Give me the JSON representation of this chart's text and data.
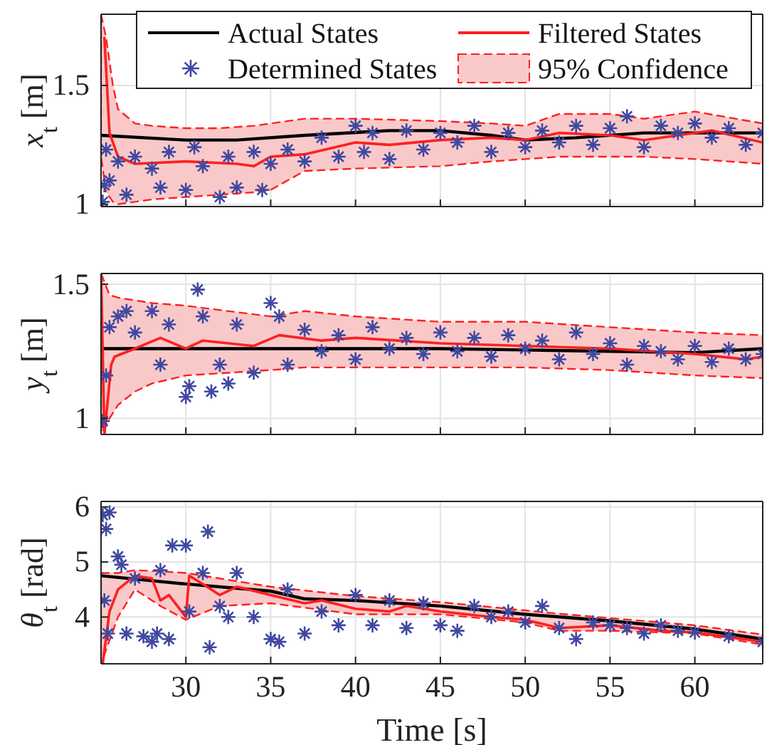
{
  "chart_data": [
    {
      "type": "line",
      "ylabel": "x$_{t}$ [m]",
      "xlim": [
        25,
        64
      ],
      "ylim": [
        0.99,
        1.8
      ],
      "xticks": [
        25,
        30,
        35,
        40,
        45,
        50,
        55,
        60
      ],
      "yticks": [
        1,
        1.5
      ],
      "tick_labels": "y",
      "grid": true,
      "legend": "top",
      "series": [
        {
          "name": "Actual States",
          "type": "line",
          "color": "#000000",
          "x": [
            25,
            30,
            33,
            37,
            42,
            45,
            48,
            50,
            53,
            57,
            60,
            64
          ],
          "values": [
            1.29,
            1.27,
            1.27,
            1.29,
            1.31,
            1.31,
            1.29,
            1.27,
            1.28,
            1.3,
            1.3,
            1.3
          ]
        },
        {
          "name": "Filtered States",
          "type": "line",
          "color": "#ff2020",
          "x": [
            25.2,
            25.5,
            26,
            27,
            30,
            33,
            34,
            35,
            37,
            40,
            42,
            45,
            48,
            50,
            52,
            55,
            57,
            59,
            61,
            64
          ],
          "values": [
            1.7,
            1.3,
            1.2,
            1.17,
            1.18,
            1.17,
            1.16,
            1.2,
            1.21,
            1.26,
            1.25,
            1.27,
            1.28,
            1.27,
            1.3,
            1.29,
            1.27,
            1.29,
            1.31,
            1.26
          ]
        },
        {
          "name": "Determined States",
          "type": "scatter",
          "marker": "cross",
          "color": "#3f48a0",
          "x": [
            25.1,
            25.2,
            25.3,
            25.5,
            26,
            26.5,
            27,
            28,
            28.5,
            29,
            30,
            30.5,
            31,
            32,
            32.5,
            33,
            34,
            34.5,
            35,
            36,
            37,
            38,
            39,
            40,
            40.5,
            41,
            42,
            43,
            44,
            45,
            46,
            47,
            48,
            49,
            50,
            51,
            52,
            53,
            54,
            55,
            56,
            57,
            58,
            59,
            60,
            61,
            62,
            63,
            64
          ],
          "values": [
            1.01,
            1.08,
            1.23,
            1.1,
            1.18,
            1.04,
            1.2,
            1.15,
            1.07,
            1.22,
            1.06,
            1.24,
            1.16,
            1.03,
            1.2,
            1.07,
            1.22,
            1.06,
            1.17,
            1.23,
            1.18,
            1.28,
            1.2,
            1.33,
            1.22,
            1.3,
            1.19,
            1.31,
            1.23,
            1.3,
            1.26,
            1.33,
            1.22,
            1.3,
            1.24,
            1.31,
            1.26,
            1.33,
            1.25,
            1.32,
            1.37,
            1.24,
            1.33,
            1.3,
            1.34,
            1.28,
            1.32,
            1.25,
            1.3
          ]
        },
        {
          "name": "95% Confidence",
          "type": "area",
          "color": "#f9c9c9",
          "line_style": "dashed",
          "x": [
            25,
            25.3,
            25.7,
            26,
            27,
            28,
            30,
            32,
            34,
            35,
            37,
            40,
            45,
            48,
            50,
            52,
            55,
            57,
            60,
            64
          ],
          "values": [
            null,
            null,
            null,
            null,
            null,
            null,
            null,
            null,
            null,
            null,
            null,
            null,
            null,
            null,
            null,
            null,
            null,
            null,
            null,
            null
          ],
          "lower": [
            1.2,
            1.05,
            1.01,
            1.0,
            1.01,
            1.02,
            1.03,
            1.04,
            1.05,
            1.06,
            1.14,
            1.15,
            1.16,
            1.18,
            1.19,
            1.2,
            1.2,
            1.2,
            1.19,
            1.17
          ],
          "upper": [
            1.8,
            1.7,
            1.5,
            1.4,
            1.34,
            1.33,
            1.32,
            1.32,
            1.33,
            1.34,
            1.36,
            1.36,
            1.35,
            1.34,
            1.33,
            1.38,
            1.38,
            1.36,
            1.39,
            1.34
          ]
        }
      ]
    },
    {
      "type": "line",
      "ylabel": "y$_{t}$ [m]",
      "xlim": [
        25,
        64
      ],
      "ylim": [
        0.94,
        1.54
      ],
      "xticks": [
        25,
        30,
        35,
        40,
        45,
        50,
        55,
        60
      ],
      "yticks": [
        1,
        1.5
      ],
      "tick_labels": "y",
      "grid": true,
      "series": [
        {
          "type": "line",
          "color": "#000000",
          "x": [
            25,
            30,
            35,
            40,
            45,
            50,
            55,
            60,
            64
          ],
          "values": [
            1.26,
            1.26,
            1.26,
            1.26,
            1.26,
            1.255,
            1.25,
            1.245,
            1.26
          ]
        },
        {
          "type": "line",
          "color": "#ff2020",
          "x": [
            25,
            25.2,
            25.6,
            25.8,
            27,
            28.5,
            30,
            31,
            34,
            35.5,
            38,
            40,
            45,
            50,
            55,
            60,
            63,
            64
          ],
          "values": [
            1.54,
            0.94,
            1.2,
            1.23,
            1.26,
            1.3,
            1.26,
            1.29,
            1.27,
            1.31,
            1.29,
            1.3,
            1.28,
            1.27,
            1.26,
            1.24,
            1.22,
            1.23
          ]
        },
        {
          "type": "scatter",
          "marker": "cross",
          "color": "#3f48a0",
          "x": [
            25.1,
            25.3,
            25.5,
            26,
            26.5,
            27,
            28,
            28.5,
            29,
            30,
            30.2,
            30.7,
            31,
            31.5,
            32,
            32.5,
            33,
            34,
            35,
            35.5,
            36,
            37,
            38,
            39,
            40,
            41,
            42,
            43,
            44,
            45,
            46,
            47,
            48,
            49,
            50,
            51,
            52,
            53,
            54,
            55,
            56,
            57,
            58,
            59,
            60,
            61,
            62,
            63,
            64
          ],
          "values": [
            0.99,
            1.16,
            1.34,
            1.38,
            1.4,
            1.32,
            1.4,
            1.2,
            1.35,
            1.08,
            1.12,
            1.48,
            1.38,
            1.1,
            1.2,
            1.13,
            1.35,
            1.17,
            1.43,
            1.38,
            1.2,
            1.33,
            1.25,
            1.31,
            1.22,
            1.34,
            1.26,
            1.3,
            1.24,
            1.32,
            1.25,
            1.3,
            1.23,
            1.31,
            1.26,
            1.29,
            1.22,
            1.32,
            1.24,
            1.28,
            1.2,
            1.27,
            1.25,
            1.22,
            1.27,
            1.21,
            1.26,
            1.22,
            1.24
          ]
        },
        {
          "type": "area",
          "color": "#f9c9c9",
          "line_style": "dashed",
          "x": [
            25,
            25.5,
            26,
            27,
            28,
            30,
            35,
            37,
            40,
            45,
            50,
            55,
            60,
            64
          ],
          "values": [
            null,
            null,
            null,
            null,
            null,
            null,
            null,
            null,
            null,
            null,
            null,
            null,
            null,
            null
          ],
          "lower": [
            0.94,
            1.0,
            1.05,
            1.1,
            1.13,
            1.16,
            1.18,
            1.19,
            1.19,
            1.19,
            1.19,
            1.18,
            1.16,
            1.15
          ],
          "upper": [
            1.54,
            1.46,
            1.45,
            1.44,
            1.43,
            1.42,
            1.38,
            1.4,
            1.38,
            1.36,
            1.36,
            1.34,
            1.32,
            1.31
          ]
        }
      ]
    },
    {
      "type": "line",
      "xlabel": "Time [s]",
      "ylabel": "θ$_{t}$ [rad]",
      "xlim": [
        25,
        64
      ],
      "ylim": [
        3.15,
        6.1
      ],
      "xticks": [
        {
          "value": 25,
          "label": null
        },
        30,
        35,
        40,
        45,
        50,
        55,
        60
      ],
      "yticks": [
        4,
        5,
        6
      ],
      "grid": true,
      "series": [
        {
          "type": "line",
          "color": "#000000",
          "x": [
            25,
            30,
            35,
            37,
            40,
            45,
            50,
            55,
            60,
            64
          ],
          "values": [
            4.75,
            4.6,
            4.47,
            4.33,
            4.3,
            4.2,
            4.05,
            3.93,
            3.78,
            3.6
          ]
        },
        {
          "type": "line",
          "color": "#ff2020",
          "x": [
            25.1,
            25.5,
            26,
            27,
            28,
            28.5,
            29,
            30,
            30.2,
            31,
            32,
            33,
            35,
            37,
            38,
            40,
            42,
            43,
            45,
            48,
            50,
            52,
            55,
            58,
            60,
            64
          ],
          "values": [
            3.15,
            4.1,
            4.5,
            4.75,
            4.7,
            4.3,
            4.4,
            4.0,
            4.75,
            4.6,
            4.4,
            4.55,
            4.4,
            4.25,
            4.3,
            4.15,
            4.1,
            4.2,
            4.1,
            4.0,
            3.95,
            3.8,
            3.85,
            3.75,
            3.72,
            3.55
          ]
        },
        {
          "type": "scatter",
          "marker": "cross",
          "color": "#3f48a0",
          "x": [
            25.1,
            25.3,
            25.5,
            25.2,
            25.4,
            26,
            26.2,
            26.5,
            27,
            27.5,
            28,
            28.3,
            28.5,
            29,
            29.2,
            30,
            30.2,
            31,
            31.3,
            31.4,
            32,
            32.5,
            33,
            34,
            35,
            35.5,
            36,
            37,
            38,
            39,
            40,
            41,
            42,
            43,
            44,
            45,
            46,
            47,
            48,
            49,
            50,
            51,
            52,
            53,
            54,
            55,
            56,
            57,
            58,
            59,
            60,
            62,
            64
          ],
          "values": [
            5.85,
            5.6,
            5.9,
            4.3,
            3.7,
            5.1,
            4.95,
            3.7,
            4.7,
            3.65,
            3.55,
            3.7,
            4.85,
            3.6,
            5.3,
            5.3,
            4.1,
            4.8,
            5.55,
            3.45,
            4.2,
            4.0,
            4.8,
            4.0,
            3.6,
            3.55,
            4.5,
            3.7,
            4.1,
            3.85,
            4.4,
            3.85,
            4.3,
            3.8,
            4.25,
            3.85,
            3.75,
            4.2,
            4.0,
            4.1,
            3.9,
            4.2,
            3.8,
            3.6,
            3.9,
            3.85,
            3.8,
            3.7,
            3.85,
            3.75,
            3.72,
            3.65,
            3.55
          ]
        },
        {
          "type": "area",
          "color": "#f9c9c9",
          "line_style": "dashed",
          "x": [
            25,
            26,
            27,
            28.5,
            30,
            32,
            35,
            40,
            45,
            50,
            52,
            55,
            60,
            64
          ],
          "values": [
            null,
            null,
            null,
            null,
            null,
            null,
            null,
            null,
            null,
            null,
            null,
            null,
            null,
            null
          ],
          "lower": [
            3.15,
            4.0,
            4.5,
            4.2,
            3.95,
            4.2,
            4.25,
            4.05,
            4.05,
            3.9,
            3.75,
            3.75,
            3.7,
            3.5
          ],
          "upper": [
            4.8,
            4.8,
            4.85,
            4.83,
            4.8,
            4.7,
            4.55,
            4.38,
            4.27,
            4.12,
            4.06,
            3.98,
            3.85,
            3.68
          ]
        }
      ]
    }
  ]
}
